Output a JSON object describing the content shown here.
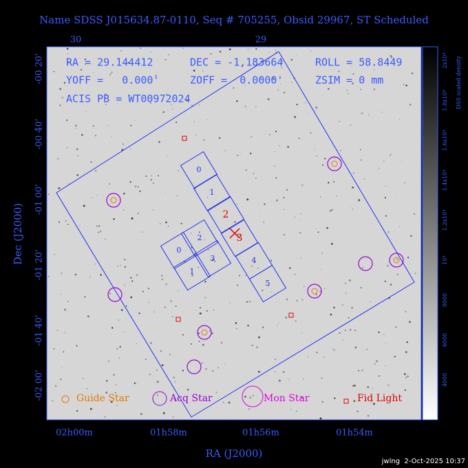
{
  "title": "Name SDSS J015634.87-0110, Seq # 705255, Obsid 29967, ST Scheduled",
  "info": {
    "ra": "RA = 29.144412",
    "dec": "DEC = -1.183664",
    "roll": "ROLL = 58.8449",
    "yoff": "YOFF =   0.000'",
    "zoff": "ZOFF =  0.0000'",
    "zsim": "ZSIM = 0 mm",
    "acis": "ACIS PB = WT00972024"
  },
  "top_ticks": [
    "30",
    "29"
  ],
  "x_ticks": [
    "02h00m",
    "01h58m",
    "01h56m",
    "01h54m"
  ],
  "y_ticks": [
    "-00 20'",
    "-00 40'",
    "-01 00'",
    "-01 20'",
    "-01 40'",
    "-02 00'"
  ],
  "x_label": "RA (J2000)",
  "y_label": "Dec (J2000)",
  "colorbar": {
    "title": "DSS scaled density",
    "ticks": [
      "2x10⁴",
      "1.8x10⁴",
      "1.6x10⁴",
      "1.4x10⁴",
      "1.2x10⁴",
      "10⁴",
      "8000",
      "6000",
      "4000"
    ]
  },
  "s_chips": [
    "0",
    "1",
    "2",
    "3",
    "4",
    "5"
  ],
  "i_chips": [
    "0",
    "1",
    "2",
    "3"
  ],
  "legend": [
    "Guide Star",
    "Acq Star",
    "Mon Star",
    "Fid Light"
  ],
  "footer": "jwlng  2-Oct-2025 10:37"
}
